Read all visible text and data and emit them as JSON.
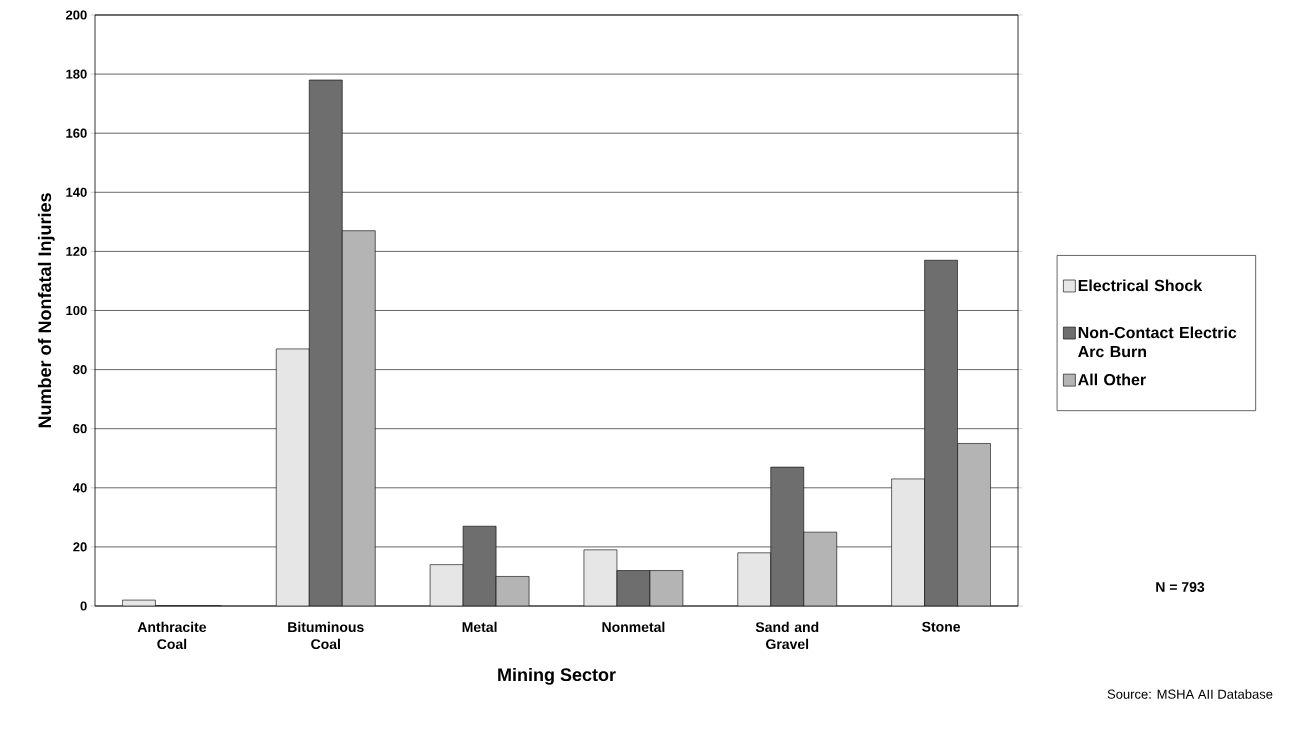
{
  "chart_data": {
    "type": "bar",
    "xlabel": "Mining Sector",
    "ylabel": "Number of Nonfatal Injuries",
    "categories": [
      "Anthracite Coal",
      "Bituminous Coal",
      "Metal",
      "Nonmetal",
      "Sand and Gravel",
      "Stone"
    ],
    "series": [
      {
        "name": "Electrical Shock",
        "color": "#e6e6e6",
        "values": [
          2,
          87,
          14,
          19,
          18,
          43
        ]
      },
      {
        "name": "Non-Contact Electric Arc Burn",
        "color": "#6e6e6e",
        "values": [
          0,
          178,
          27,
          12,
          47,
          117
        ]
      },
      {
        "name": "All Other",
        "color": "#b4b4b4",
        "values": [
          0,
          127,
          10,
          12,
          25,
          55
        ]
      }
    ],
    "ylim": [
      0,
      200
    ],
    "yticks": [
      0,
      20,
      40,
      60,
      80,
      100,
      120,
      140,
      160,
      180,
      200
    ],
    "grid": "y",
    "legend": "right",
    "annotations": [
      "N = 793",
      "Source: MSHA AII Database"
    ]
  }
}
